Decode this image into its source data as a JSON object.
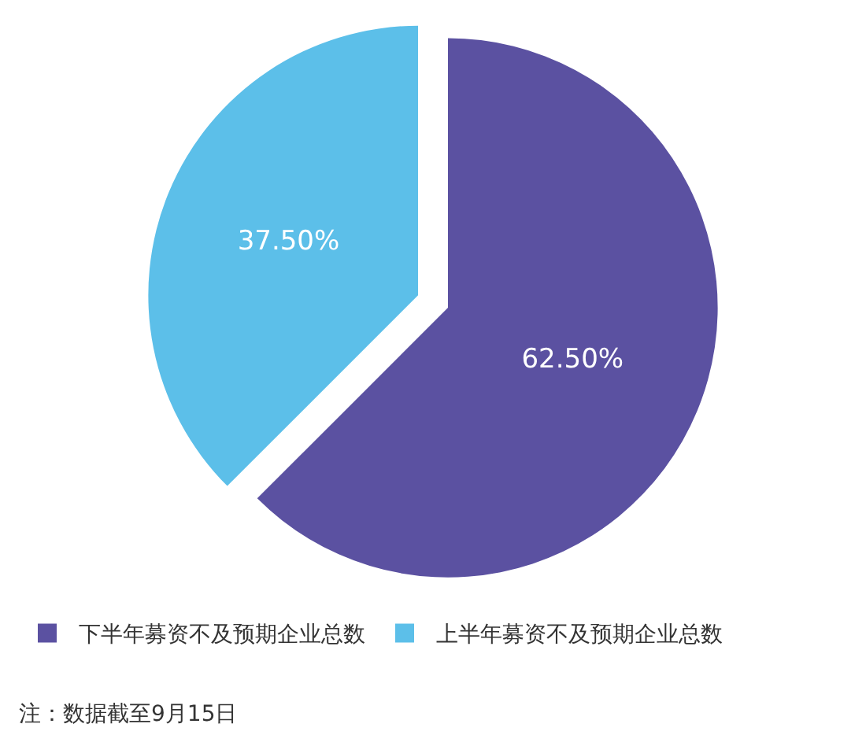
{
  "chart_data": {
    "type": "pie",
    "categories": [
      "下半年募资不及预期企业总数",
      "上半年募资不及预期企业总数"
    ],
    "values": [
      62.5,
      37.5
    ],
    "colors": [
      "#5b51a1",
      "#5cbfe9"
    ],
    "value_labels": [
      "62.50%",
      "37.50%"
    ],
    "legend": "bottom left",
    "annotations": [
      "注：数据截至9月15日"
    ]
  }
}
